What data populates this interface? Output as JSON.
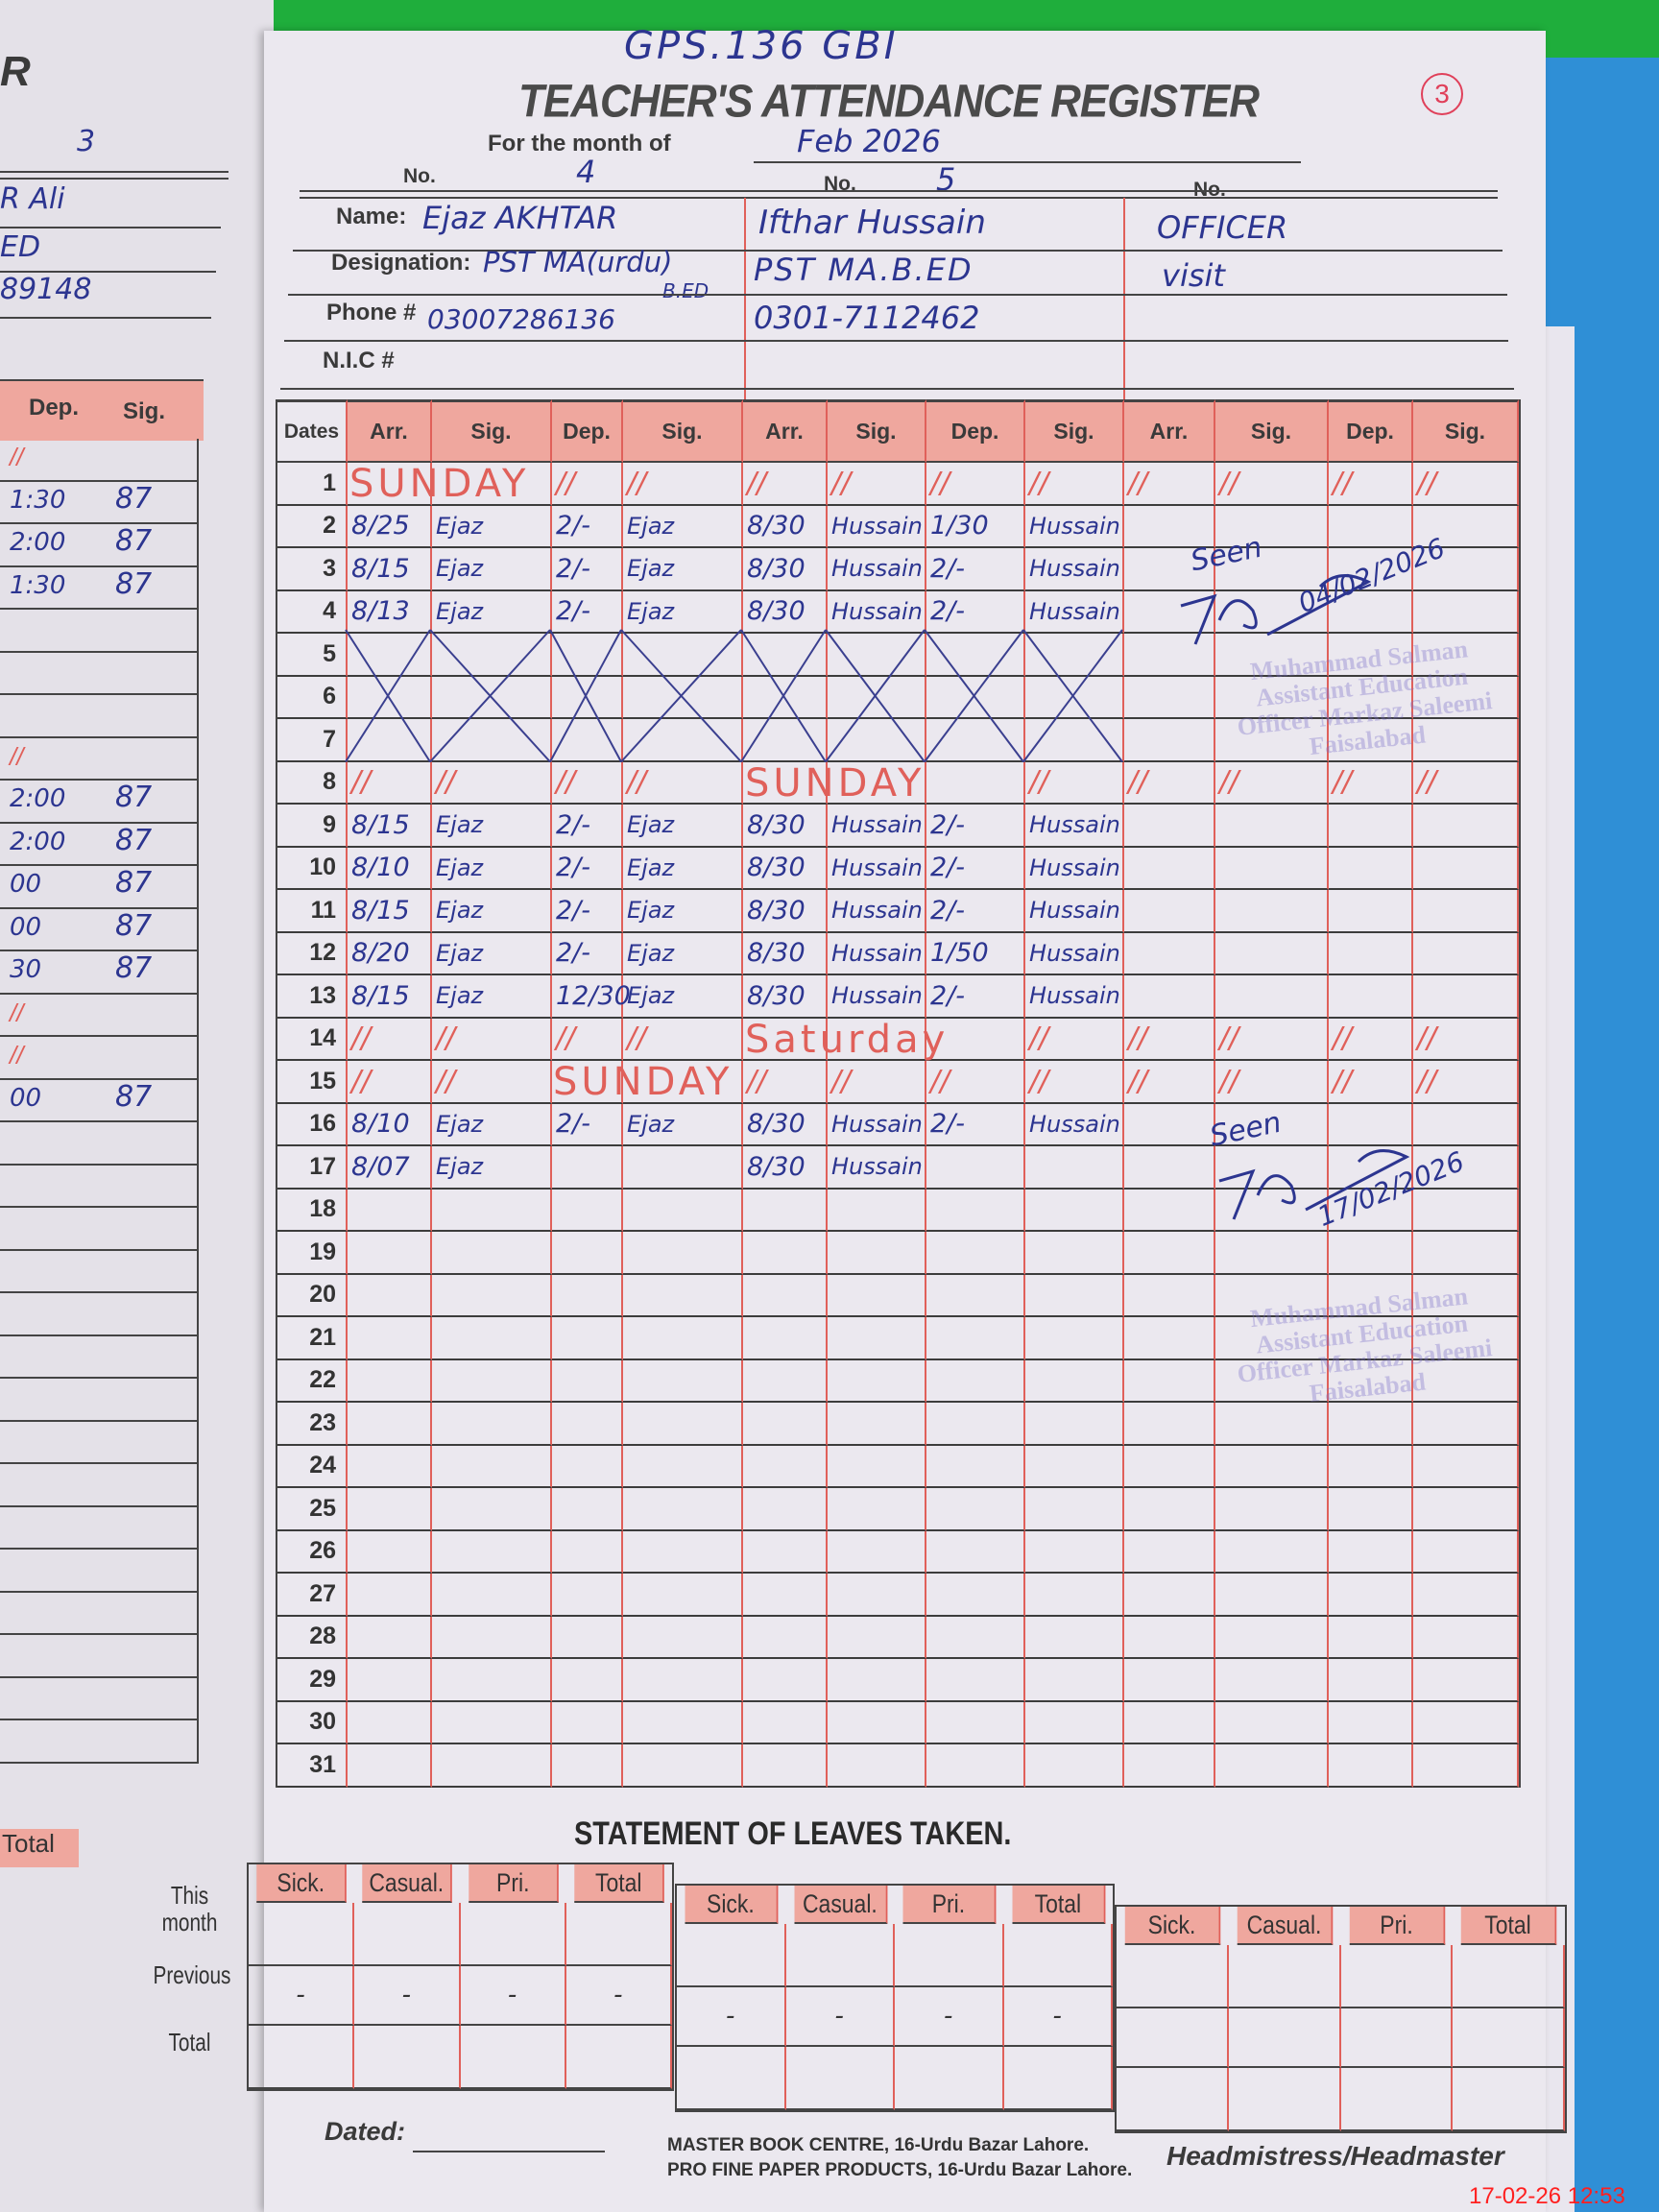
{
  "colors": {
    "header_fill": "#efa79e",
    "rule_red": "#e0605a",
    "ink_blue": "#2c3590",
    "background_green": "#1fae3c",
    "folder_blue": "#2f8fd6",
    "timestamp_red": "#ff2020"
  },
  "left_page": {
    "title_fragment": "R",
    "no_value": "3",
    "name_fragment": "R Ali",
    "designation_fragment": "ED",
    "phone_fragment": "89148",
    "col_headers": [
      "Dep.",
      "Sig."
    ],
    "dep_times": [
      "//",
      "1:30",
      "2:00",
      "1:30",
      "",
      "",
      "",
      "//",
      "2:00",
      "2:00",
      "00",
      "00",
      "30",
      "//",
      "//",
      "00"
    ],
    "sig_mark": "87",
    "total_label": "Total"
  },
  "register": {
    "school": "GPS.136 GBI",
    "title": "TEACHER'S ATTENDANCE REGISTER",
    "page_mark": "3",
    "month_label": "For the month of",
    "month_value": "Feb 2026",
    "no_label": "No.",
    "field_labels": {
      "name": "Name:",
      "designation": "Designation:",
      "phone": "Phone #",
      "nic": "N.I.C #"
    },
    "teachers": [
      {
        "no": "4",
        "name": "Ejaz AKHTAR",
        "designation": "PST MA(urdu)",
        "designation2": "B.ED",
        "phone": "03007286136",
        "nic": ""
      },
      {
        "no": "5",
        "name": "Ifthar Hussain",
        "designation": "PST MA.B.ED",
        "designation2": "",
        "phone": "0301-7112462",
        "nic": ""
      },
      {
        "no": "",
        "name": "OFFICER",
        "designation": "visit",
        "designation2": "",
        "phone": "",
        "nic": ""
      }
    ],
    "column_headers": [
      "Dates",
      "Arr.",
      "Sig.",
      "Dep.",
      "Sig.",
      "Arr.",
      "Sig.",
      "Dep.",
      "Sig.",
      "Arr.",
      "Sig.",
      "Dep.",
      "Sig."
    ],
    "attendance": [
      {
        "day": "1",
        "holiday": "SUNDAY"
      },
      {
        "day": "2",
        "t1": [
          "8/25",
          "Ejaz",
          "2/-",
          "Ejaz"
        ],
        "t2": [
          "8/30",
          "Hussain",
          "1/30",
          "Hussain"
        ]
      },
      {
        "day": "3",
        "t1": [
          "8/15",
          "Ejaz",
          "2/-",
          "Ejaz"
        ],
        "t2": [
          "8/30",
          "Hussain",
          "2/-",
          "Hussain"
        ]
      },
      {
        "day": "4",
        "t1": [
          "8/13",
          "Ejaz",
          "2/-",
          "Ejaz"
        ],
        "t2": [
          "8/30",
          "Hussain",
          "2/-",
          "Hussain"
        ]
      },
      {
        "day": "5",
        "crossed": true
      },
      {
        "day": "6",
        "crossed": true
      },
      {
        "day": "7",
        "crossed": true
      },
      {
        "day": "8",
        "holiday": "SUNDAY"
      },
      {
        "day": "9",
        "t1": [
          "8/15",
          "Ejaz",
          "2/-",
          "Ejaz"
        ],
        "t2": [
          "8/30",
          "Hussain",
          "2/-",
          "Hussain"
        ]
      },
      {
        "day": "10",
        "t1": [
          "8/10",
          "Ejaz",
          "2/-",
          "Ejaz"
        ],
        "t2": [
          "8/30",
          "Hussain",
          "2/-",
          "Hussain"
        ]
      },
      {
        "day": "11",
        "t1": [
          "8/15",
          "Ejaz",
          "2/-",
          "Ejaz"
        ],
        "t2": [
          "8/30",
          "Hussain",
          "2/-",
          "Hussain"
        ]
      },
      {
        "day": "12",
        "t1": [
          "8/20",
          "Ejaz",
          "2/-",
          "Ejaz"
        ],
        "t2": [
          "8/30",
          "Hussain",
          "1/50",
          "Hussain"
        ]
      },
      {
        "day": "13",
        "t1": [
          "8/15",
          "Ejaz",
          "12/30",
          "Ejaz"
        ],
        "t2": [
          "8/30",
          "Hussain",
          "2/-",
          "Hussain"
        ]
      },
      {
        "day": "14",
        "holiday": "Saturday"
      },
      {
        "day": "15",
        "holiday": "SUNDAY"
      },
      {
        "day": "16",
        "t1": [
          "8/10",
          "Ejaz",
          "2/-",
          "Ejaz"
        ],
        "t2": [
          "8/30",
          "Hussain",
          "2/-",
          "Hussain"
        ]
      },
      {
        "day": "17",
        "t1": [
          "8/07",
          "Ejaz",
          "",
          ""
        ],
        "t2": [
          "8/30",
          "Hussain",
          "",
          ""
        ]
      },
      {
        "day": "18"
      },
      {
        "day": "19"
      },
      {
        "day": "20"
      },
      {
        "day": "21"
      },
      {
        "day": "22"
      },
      {
        "day": "23"
      },
      {
        "day": "24"
      },
      {
        "day": "25"
      },
      {
        "day": "26"
      },
      {
        "day": "27"
      },
      {
        "day": "28"
      },
      {
        "day": "29"
      },
      {
        "day": "30"
      },
      {
        "day": "31"
      }
    ],
    "holiday_mark": "//",
    "officer_visits": [
      {
        "remark": "Seen",
        "date": "04/02/2026",
        "stamp": "Muhammad Salman Assistant Education Officer Markaz Saleemi Faisalabad"
      },
      {
        "remark": "Seen",
        "date": "17/02/2026",
        "stamp": "Muhammad Salman Assistant Education Officer Markaz Saleemi Faisalabad"
      }
    ]
  },
  "leaves": {
    "title": "STATEMENT OF LEAVES TAKEN.",
    "column_headers": [
      "Sick.",
      "Casual.",
      "Pri.",
      "Total"
    ],
    "row_labels": [
      "This month",
      "Previous",
      "Total"
    ],
    "groups": [
      {
        "this_month": [
          "",
          "",
          "",
          ""
        ],
        "previous": [
          "-",
          "-",
          "-",
          "-"
        ],
        "total": [
          "",
          "",
          "",
          ""
        ]
      },
      {
        "this_month": [
          "",
          "",
          "",
          ""
        ],
        "previous": [
          "-",
          "-",
          "-",
          "-"
        ],
        "total": [
          "",
          "",
          "",
          ""
        ]
      },
      {
        "this_month": [
          "",
          "",
          "",
          ""
        ],
        "previous": [
          "",
          "",
          "",
          ""
        ],
        "total": [
          "",
          "",
          "",
          ""
        ]
      }
    ]
  },
  "footer": {
    "dated_label": "Dated:",
    "publisher_line1": "MASTER BOOK CENTRE, 16-Urdu Bazar Lahore.",
    "publisher_line2": "PRO FINE PAPER PRODUCTS, 16-Urdu Bazar Lahore.",
    "signatory": "Headmistress/Headmaster"
  },
  "photo_timestamp": "17-02-26 12:53"
}
